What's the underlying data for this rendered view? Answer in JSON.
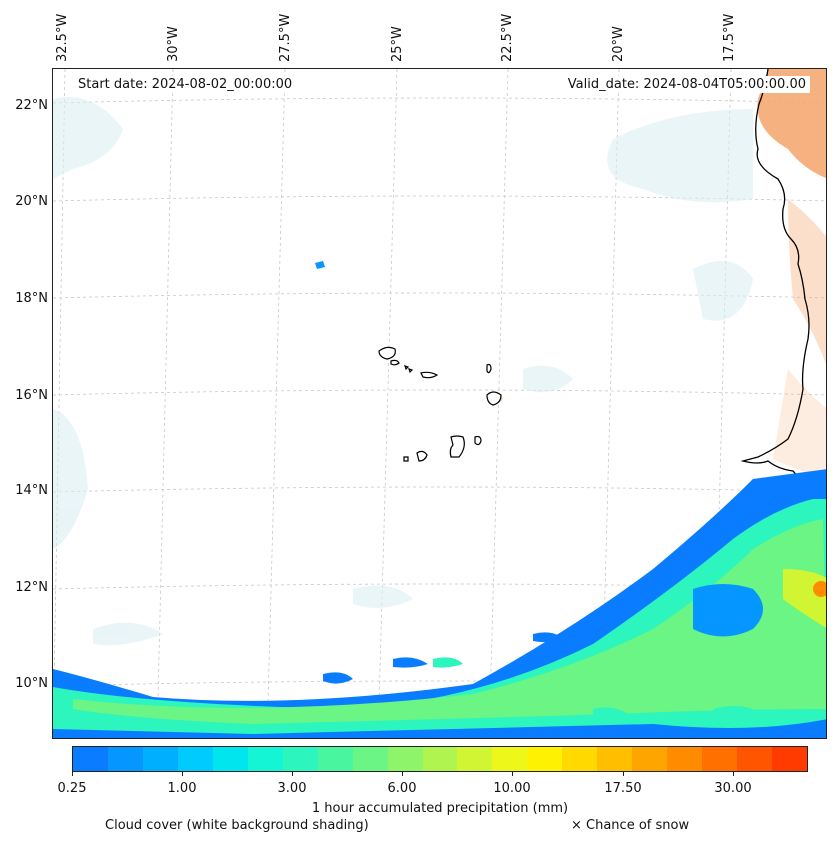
{
  "map": {
    "region": "Cape Verde / West Africa coast",
    "top_axis_labels": [
      "32.5°W",
      "30°W",
      "27.5°W",
      "25°W",
      "22.5°W",
      "20°W",
      "17.5°W"
    ],
    "left_axis_labels": [
      "22°N",
      "20°N",
      "18°N",
      "16°N",
      "14°N",
      "12°N",
      "10°N"
    ],
    "start_date_text": "Start date: 2024-08-02_00:00:00",
    "valid_date_text": "Valid_date: 2024-08-04T05:00:00.00",
    "colors": {
      "coastline": "#000000",
      "land_warm": "#f3a36a",
      "cloud_shade": "#d8ecf2",
      "gridline": "#bdbdbd"
    }
  },
  "colorbar": {
    "tick_labels": [
      "0.25",
      "1.00",
      "3.00",
      "6.00",
      "10.00",
      "17.50",
      "30.00"
    ],
    "colors": [
      "#0a7cff",
      "#0596ff",
      "#00b0ff",
      "#00cbff",
      "#00e6ee",
      "#14f5d6",
      "#2cf5bd",
      "#4af59f",
      "#6af584",
      "#8ef56a",
      "#b0f54f",
      "#d2f533",
      "#eef71a",
      "#fff200",
      "#ffd900",
      "#ffbf00",
      "#ffa500",
      "#ff8c00",
      "#ff7000",
      "#ff5500",
      "#ff3b00"
    ],
    "title": "1 hour accumulated precipitation (mm)"
  },
  "footer": {
    "cloud_cover": "Cloud cover (white background shading)",
    "snow": "× Chance of snow"
  }
}
